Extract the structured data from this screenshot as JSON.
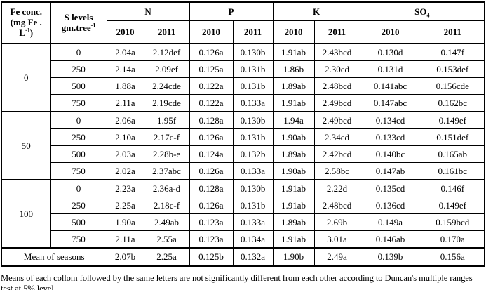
{
  "colors": {
    "text": "#000000",
    "border": "#000000",
    "background": "#ffffff"
  },
  "table": {
    "header": {
      "fe_line1": "Fe conc.",
      "fe_line2": "(mg Fe .",
      "fe_line3_base": "L",
      "fe_line3_sup": "-1",
      "fe_line3_close": ")",
      "s_line1": "S levels",
      "s_line2_base": "gm.tree",
      "s_line2_sup": "-1",
      "group_n": "N",
      "group_p": "P",
      "group_k": "K",
      "group_so4_base": "SO",
      "group_so4_sub": "4",
      "years": [
        "2010",
        "2011",
        "2010",
        "2011",
        "2010",
        "2011",
        "2010",
        "2011"
      ]
    },
    "body": [
      {
        "fe": "0",
        "rows": [
          {
            "s": "0",
            "values": [
              "2.04a",
              "2.12def",
              "0.126a",
              "0.130b",
              "1.91ab",
              "2.43bcd",
              "0.130d",
              "0.147f"
            ]
          },
          {
            "s": "250",
            "values": [
              "2.14a",
              "2.09ef",
              "0.125a",
              "0.131b",
              "1.86b",
              "2.30cd",
              "0.131d",
              "0.153def"
            ]
          },
          {
            "s": "500",
            "values": [
              "1.88a",
              "2.24cde",
              "0.122a",
              "0.131b",
              "1.89ab",
              "2.48bcd",
              "0.141abc",
              "0.156cde"
            ]
          },
          {
            "s": "750",
            "values": [
              "2.11a",
              "2.19cde",
              "0.122a",
              "0.133a",
              "1.91ab",
              "2.49bcd",
              "0.147abc",
              "0.162bc"
            ]
          }
        ]
      },
      {
        "fe": "50",
        "rows": [
          {
            "s": "0",
            "values": [
              "2.06a",
              "1.95f",
              "0.128a",
              "0.130b",
              "1.94a",
              "2.49bcd",
              "0.134cd",
              "0.149ef"
            ]
          },
          {
            "s": "250",
            "values": [
              "2.10a",
              "2.17c-f",
              "0.126a",
              "0.131b",
              "1.90ab",
              "2.34cd",
              "0.133cd",
              "0.151def"
            ]
          },
          {
            "s": "500",
            "values": [
              "2.03a",
              "2.28b-e",
              "0.124a",
              "0.132b",
              "1.89ab",
              "2.42bcd",
              "0.140bc",
              "0.165ab"
            ]
          },
          {
            "s": "750",
            "values": [
              "2.02a",
              "2.37abc",
              "0.126a",
              "0.133a",
              "1.90ab",
              "2.58bc",
              "0.147ab",
              "0.161bc"
            ]
          }
        ]
      },
      {
        "fe": "100",
        "rows": [
          {
            "s": "0",
            "values": [
              "2.23a",
              "2.36a-d",
              "0.128a",
              "0.130b",
              "1.91ab",
              "2.22d",
              "0.135cd",
              "0.146f"
            ]
          },
          {
            "s": "250",
            "values": [
              "2.25a",
              "2.18c-f",
              "0.126a",
              "0.131b",
              "1.91ab",
              "2.48bcd",
              "0.136cd",
              "0.149ef"
            ]
          },
          {
            "s": "500",
            "values": [
              "1.90a",
              "2.49ab",
              "0.123a",
              "0.133a",
              "1.89ab",
              "2.69b",
              "0.149a",
              "0.159bcd"
            ]
          },
          {
            "s": "750",
            "values": [
              "2.11a",
              "2.55a",
              "0.123a",
              "0.134a",
              "1.91ab",
              "3.01a",
              "0.146ab",
              "0.170a"
            ]
          }
        ]
      }
    ],
    "mean_row": {
      "label": "Mean of seasons",
      "values": [
        "2.07b",
        "2.25a",
        "0.125b",
        "0.132a",
        "1.90b",
        "2.49a",
        "0.139b",
        "0.156a"
      ]
    }
  },
  "footnote": "Means of each collom followed by the same letters are not significantly different from each other according to Duncan's multiple ranges test at 5% level."
}
